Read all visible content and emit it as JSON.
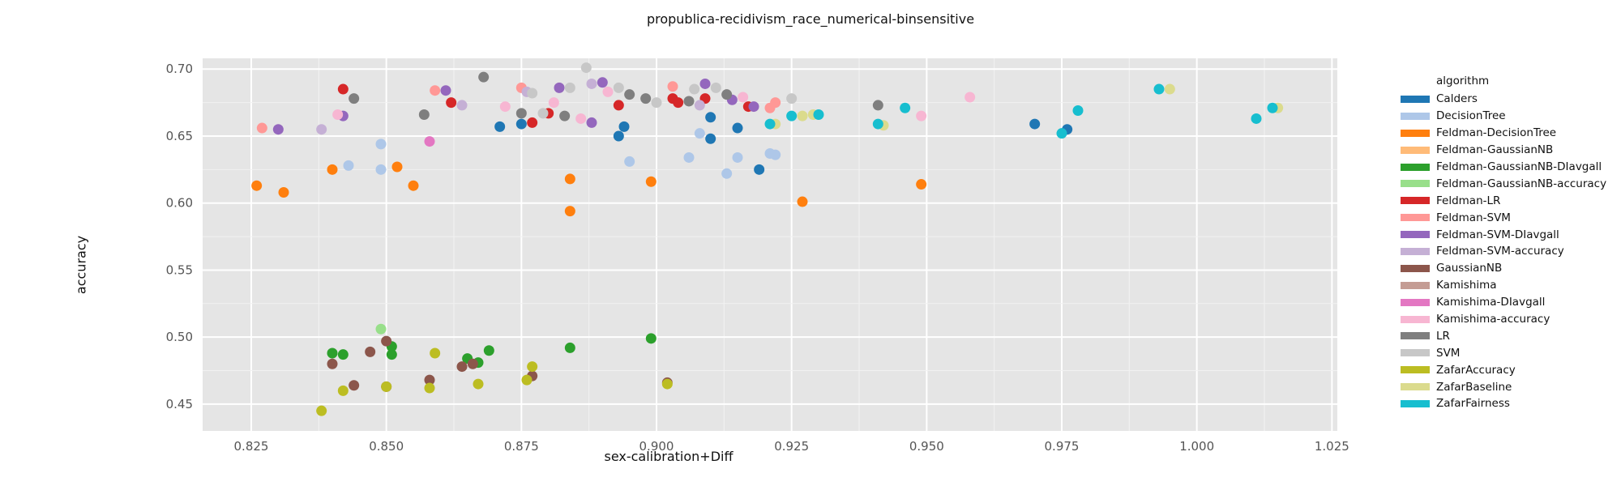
{
  "chart_data": {
    "type": "scatter",
    "title": "propublica-recidivism_race_numerical-binsensitive",
    "xlabel": "sex-calibration+Diff",
    "ylabel": "accuracy",
    "xlim": [
      0.816,
      1.026
    ],
    "ylim": [
      0.43,
      0.708
    ],
    "x_ticks": [
      "0.825",
      "0.850",
      "0.875",
      "0.900",
      "0.925",
      "0.950",
      "0.975",
      "1.000",
      "1.025"
    ],
    "y_ticks": [
      "0.45",
      "0.50",
      "0.55",
      "0.60",
      "0.65",
      "0.70"
    ],
    "grid": true,
    "legend_title": "algorithm",
    "legend_position": "right",
    "series": [
      {
        "name": "Calders",
        "color": "#1f77b4",
        "points": [
          [
            0.871,
            0.657
          ],
          [
            0.875,
            0.659
          ],
          [
            0.893,
            0.65
          ],
          [
            0.894,
            0.657
          ],
          [
            0.91,
            0.664
          ],
          [
            0.91,
            0.648
          ],
          [
            0.915,
            0.656
          ],
          [
            0.919,
            0.625
          ],
          [
            0.97,
            0.659
          ],
          [
            0.976,
            0.655
          ]
        ]
      },
      {
        "name": "DecisionTree",
        "color": "#aec7e8",
        "points": [
          [
            0.843,
            0.628
          ],
          [
            0.849,
            0.625
          ],
          [
            0.849,
            0.644
          ],
          [
            0.895,
            0.631
          ],
          [
            0.906,
            0.634
          ],
          [
            0.908,
            0.652
          ],
          [
            0.913,
            0.622
          ],
          [
            0.915,
            0.634
          ],
          [
            0.921,
            0.637
          ],
          [
            0.922,
            0.636
          ]
        ]
      },
      {
        "name": "Feldman-DecisionTree",
        "color": "#ff7f0e",
        "points": [
          [
            0.826,
            0.613
          ],
          [
            0.831,
            0.608
          ],
          [
            0.84,
            0.625
          ],
          [
            0.852,
            0.627
          ],
          [
            0.855,
            0.613
          ],
          [
            0.884,
            0.618
          ],
          [
            0.884,
            0.594
          ],
          [
            0.899,
            0.616
          ],
          [
            0.927,
            0.601
          ],
          [
            0.949,
            0.614
          ]
        ]
      },
      {
        "name": "Feldman-GaussianNB",
        "color": "#ffbb78",
        "points": []
      },
      {
        "name": "Feldman-GaussianNB-DIavgall",
        "color": "#2ca02c",
        "points": [
          [
            0.84,
            0.488
          ],
          [
            0.842,
            0.487
          ],
          [
            0.851,
            0.487
          ],
          [
            0.851,
            0.493
          ],
          [
            0.865,
            0.484
          ],
          [
            0.867,
            0.481
          ],
          [
            0.869,
            0.49
          ],
          [
            0.884,
            0.492
          ],
          [
            0.899,
            0.499
          ]
        ]
      },
      {
        "name": "Feldman-GaussianNB-accuracy",
        "color": "#98df8a",
        "points": [
          [
            0.849,
            0.506
          ]
        ]
      },
      {
        "name": "Feldman-LR",
        "color": "#d62728",
        "points": [
          [
            0.842,
            0.685
          ],
          [
            0.862,
            0.675
          ],
          [
            0.877,
            0.66
          ],
          [
            0.88,
            0.667
          ],
          [
            0.893,
            0.673
          ],
          [
            0.903,
            0.678
          ],
          [
            0.904,
            0.675
          ],
          [
            0.909,
            0.678
          ],
          [
            0.917,
            0.672
          ]
        ]
      },
      {
        "name": "Feldman-SVM",
        "color": "#ff9896",
        "points": [
          [
            0.827,
            0.656
          ],
          [
            0.859,
            0.684
          ],
          [
            0.875,
            0.686
          ],
          [
            0.903,
            0.687
          ],
          [
            0.921,
            0.671
          ],
          [
            0.922,
            0.675
          ]
        ]
      },
      {
        "name": "Feldman-SVM-DIavgall",
        "color": "#9467bd",
        "points": [
          [
            0.83,
            0.655
          ],
          [
            0.842,
            0.665
          ],
          [
            0.861,
            0.684
          ],
          [
            0.882,
            0.686
          ],
          [
            0.888,
            0.66
          ],
          [
            0.89,
            0.69
          ],
          [
            0.909,
            0.689
          ],
          [
            0.914,
            0.677
          ],
          [
            0.918,
            0.672
          ]
        ]
      },
      {
        "name": "Feldman-SVM-accuracy",
        "color": "#c5b0d5",
        "points": [
          [
            0.838,
            0.655
          ],
          [
            0.864,
            0.673
          ],
          [
            0.876,
            0.683
          ],
          [
            0.888,
            0.689
          ],
          [
            0.908,
            0.673
          ]
        ]
      },
      {
        "name": "GaussianNB",
        "color": "#8c564b",
        "points": [
          [
            0.84,
            0.48
          ],
          [
            0.844,
            0.464
          ],
          [
            0.847,
            0.489
          ],
          [
            0.85,
            0.497
          ],
          [
            0.85,
            0.463
          ],
          [
            0.858,
            0.468
          ],
          [
            0.864,
            0.478
          ],
          [
            0.866,
            0.48
          ],
          [
            0.877,
            0.471
          ],
          [
            0.902,
            0.466
          ]
        ]
      },
      {
        "name": "Kamishima",
        "color": "#c49c94",
        "points": []
      },
      {
        "name": "Kamishima-DIavgall",
        "color": "#e377c2",
        "points": [
          [
            0.858,
            0.646
          ]
        ]
      },
      {
        "name": "Kamishima-accuracy",
        "color": "#f7b6d2",
        "points": [
          [
            0.841,
            0.666
          ],
          [
            0.872,
            0.672
          ],
          [
            0.881,
            0.675
          ],
          [
            0.886,
            0.663
          ],
          [
            0.891,
            0.683
          ],
          [
            0.916,
            0.679
          ],
          [
            0.958,
            0.679
          ],
          [
            0.949,
            0.665
          ]
        ]
      },
      {
        "name": "LR",
        "color": "#7f7f7f",
        "points": [
          [
            0.844,
            0.678
          ],
          [
            0.857,
            0.666
          ],
          [
            0.868,
            0.694
          ],
          [
            0.875,
            0.667
          ],
          [
            0.883,
            0.665
          ],
          [
            0.895,
            0.681
          ],
          [
            0.898,
            0.678
          ],
          [
            0.906,
            0.676
          ],
          [
            0.913,
            0.681
          ],
          [
            0.941,
            0.673
          ]
        ]
      },
      {
        "name": "SVM",
        "color": "#c7c7c7",
        "points": [
          [
            0.877,
            0.682
          ],
          [
            0.879,
            0.667
          ],
          [
            0.884,
            0.686
          ],
          [
            0.887,
            0.701
          ],
          [
            0.893,
            0.686
          ],
          [
            0.9,
            0.675
          ],
          [
            0.907,
            0.685
          ],
          [
            0.911,
            0.686
          ],
          [
            0.925,
            0.678
          ]
        ]
      },
      {
        "name": "ZafarAccuracy",
        "color": "#bcbd22",
        "points": [
          [
            0.838,
            0.445
          ],
          [
            0.842,
            0.46
          ],
          [
            0.85,
            0.463
          ],
          [
            0.858,
            0.462
          ],
          [
            0.859,
            0.488
          ],
          [
            0.867,
            0.465
          ],
          [
            0.876,
            0.468
          ],
          [
            0.877,
            0.478
          ],
          [
            0.902,
            0.465
          ]
        ]
      },
      {
        "name": "ZafarBaseline",
        "color": "#dbdb8d",
        "points": [
          [
            0.922,
            0.659
          ],
          [
            0.927,
            0.665
          ],
          [
            0.929,
            0.666
          ],
          [
            0.942,
            0.658
          ],
          [
            0.995,
            0.685
          ],
          [
            1.015,
            0.671
          ]
        ]
      },
      {
        "name": "ZafarFairness",
        "color": "#17becf",
        "points": [
          [
            0.921,
            0.659
          ],
          [
            0.925,
            0.665
          ],
          [
            0.93,
            0.666
          ],
          [
            0.941,
            0.659
          ],
          [
            0.946,
            0.671
          ],
          [
            0.975,
            0.652
          ],
          [
            0.978,
            0.669
          ],
          [
            0.993,
            0.685
          ],
          [
            1.011,
            0.663
          ],
          [
            1.014,
            0.671
          ]
        ]
      }
    ]
  }
}
